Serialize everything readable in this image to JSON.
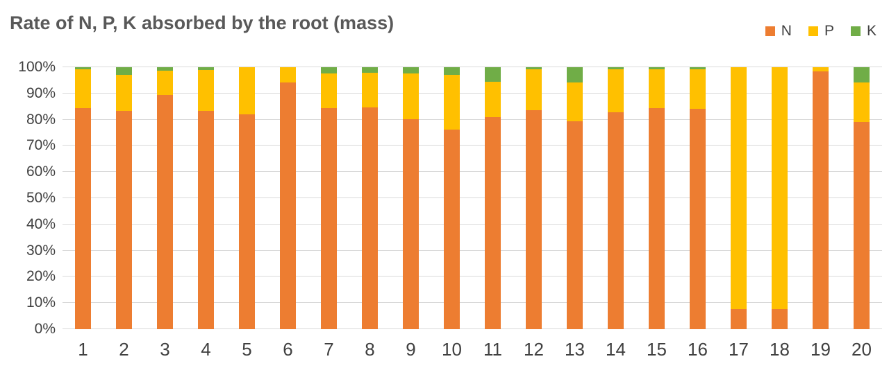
{
  "title": "Rate of N, P, K absorbed by the root (mass)",
  "colors": {
    "N": "#ED7D31",
    "P": "#FFC000",
    "K": "#70AD47",
    "gridline": "#D9D9D9",
    "axis_text": "#404040",
    "title_text": "#595959"
  },
  "chart_data": {
    "type": "bar",
    "stacked": true,
    "percent": true,
    "title": "Rate of N, P, K absorbed by the root (mass)",
    "categories": [
      "1",
      "2",
      "3",
      "4",
      "5",
      "6",
      "7",
      "8",
      "9",
      "10",
      "11",
      "12",
      "13",
      "14",
      "15",
      "16",
      "17",
      "18",
      "19",
      "20"
    ],
    "series": [
      {
        "name": "N",
        "color": "#ED7D31",
        "values": [
          84.3,
          83.3,
          89.3,
          83.4,
          82.1,
          94.3,
          84.5,
          84.6,
          80.1,
          76.2,
          81.0,
          83.5,
          79.3,
          82.7,
          84.3,
          84.2,
          7.7,
          7.7,
          98.3,
          79.2
        ]
      },
      {
        "name": "P",
        "color": "#FFC000",
        "values": [
          15.0,
          13.9,
          9.5,
          15.6,
          17.9,
          5.7,
          13.0,
          13.2,
          17.6,
          21.0,
          13.4,
          15.7,
          14.9,
          16.6,
          15.0,
          15.0,
          92.3,
          92.3,
          1.7,
          14.9
        ]
      },
      {
        "name": "K",
        "color": "#70AD47",
        "values": [
          0.7,
          2.8,
          1.2,
          1.0,
          0,
          0,
          2.5,
          2.2,
          2.3,
          2.8,
          5.6,
          0.8,
          5.8,
          0.7,
          0.7,
          0.8,
          0,
          0,
          0,
          5.9
        ]
      }
    ],
    "xlabel": "",
    "ylabel": "",
    "ylim": [
      0,
      100
    ],
    "y_ticks": [
      "0%",
      "10%",
      "20%",
      "30%",
      "40%",
      "50%",
      "60%",
      "70%",
      "80%",
      "90%",
      "100%"
    ],
    "grid": true,
    "legend_position": "top-right"
  }
}
